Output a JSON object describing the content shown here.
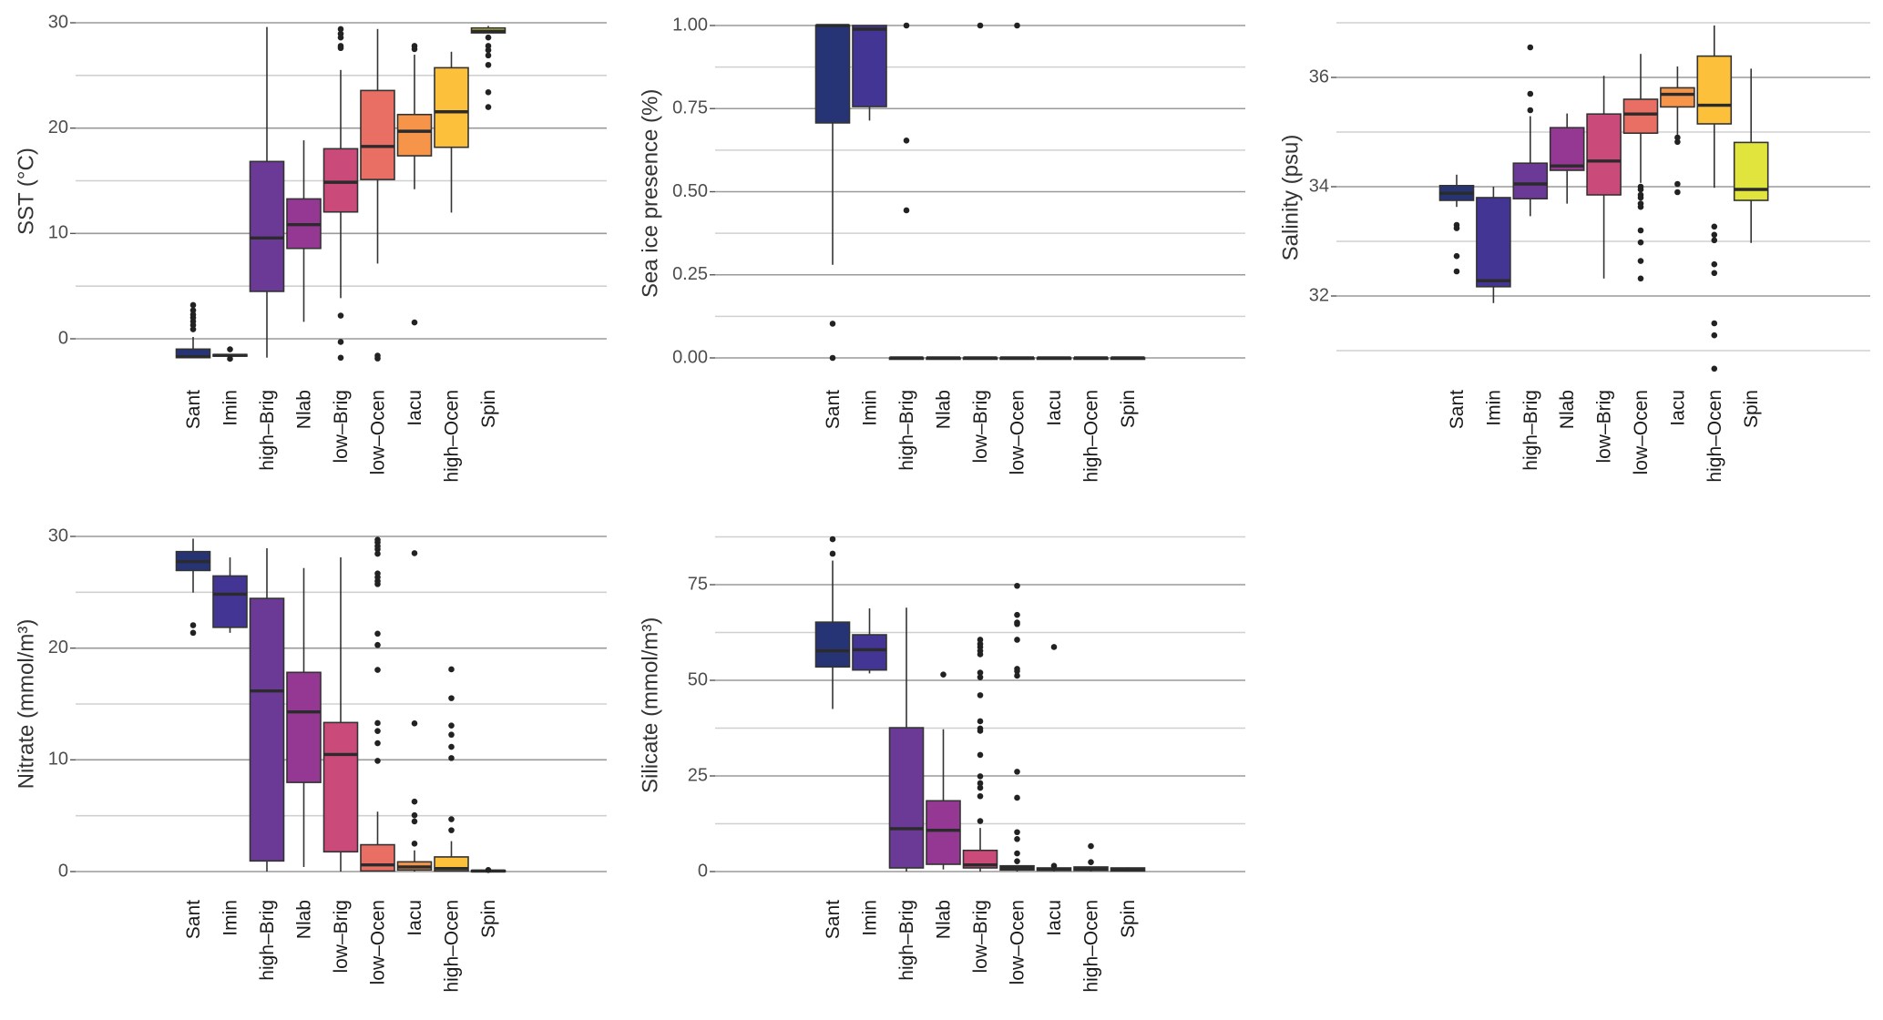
{
  "figure": {
    "categories": [
      "Sant",
      "Imin",
      "high–Brig",
      "Nlab",
      "low–Brig",
      "low–Ocen",
      "Iacu",
      "high–Ocen",
      "Spin"
    ],
    "palette": [
      "#263476",
      "#433594",
      "#6B3A96",
      "#953893",
      "#CA4A7A",
      "#E96F64",
      "#F6954A",
      "#FDC03A",
      "#E1E43C"
    ]
  },
  "chart_data": [
    {
      "id": "sst",
      "type": "box",
      "title": "",
      "xlabel": "",
      "ylabel": "SST (°C)",
      "ylim": [
        -2.3,
        30.3
      ],
      "yticks": [
        0,
        10,
        20,
        30
      ],
      "ytick_labels": [
        "0",
        "10",
        "20",
        "30"
      ],
      "minor_gridlines": [
        5,
        15,
        25
      ],
      "grid": true,
      "categories": [
        "Sant",
        "Imin",
        "high–Brig",
        "Nlab",
        "low–Brig",
        "low–Ocen",
        "Iacu",
        "high–Ocen",
        "Spin"
      ],
      "boxes": [
        {
          "q1": -1.79,
          "median": -1.7,
          "q3": -0.98,
          "whislo": -1.79,
          "whishi": 0.17,
          "fliers": [
            0.9,
            1.3,
            1.65,
            2.0,
            2.3,
            2.7,
            3.2
          ]
        },
        {
          "q1": -1.65,
          "median": -1.56,
          "q3": -1.5,
          "whislo": -1.65,
          "whishi": -1.5,
          "fliers": [
            -1.0,
            -1.9
          ]
        },
        {
          "q1": 4.5,
          "median": 9.57,
          "q3": 16.83,
          "whislo": -1.79,
          "whishi": 29.6,
          "fliers": []
        },
        {
          "q1": 8.58,
          "median": 10.83,
          "q3": 13.28,
          "whislo": 1.61,
          "whishi": 18.84,
          "fliers": []
        },
        {
          "q1": 12.04,
          "median": 14.86,
          "q3": 18.04,
          "whislo": 3.86,
          "whishi": 25.52,
          "fliers": [
            29.4,
            28.96,
            28.6,
            27.8,
            27.6,
            2.2,
            -0.3,
            -1.8
          ]
        },
        {
          "q1": 15.12,
          "median": 18.26,
          "q3": 23.57,
          "whislo": 7.14,
          "whishi": 29.41,
          "fliers": [
            -1.6,
            -1.87
          ]
        },
        {
          "q1": 17.37,
          "median": 19.7,
          "q3": 21.29,
          "whislo": 14.2,
          "whishi": 26.97,
          "fliers": [
            27.8,
            27.5,
            1.55
          ]
        },
        {
          "q1": 18.18,
          "median": 21.55,
          "q3": 25.73,
          "whislo": 11.98,
          "whishi": 27.25,
          "fliers": []
        },
        {
          "q1": 29.04,
          "median": 29.2,
          "q3": 29.5,
          "whislo": 29.04,
          "whishi": 29.7,
          "fliers": [
            28.6,
            27.8,
            27.4,
            26.9,
            26.0,
            23.4,
            22.0
          ]
        }
      ]
    },
    {
      "id": "seaice",
      "type": "box",
      "title": "",
      "xlabel": "",
      "ylabel": "Sea ice presence (%)",
      "ylim": [
        -0.03,
        1.02
      ],
      "yticks": [
        0,
        0.25,
        0.5,
        0.75,
        1.0
      ],
      "ytick_labels": [
        "0.00",
        "0.25",
        "0.50",
        "0.75",
        "1.00"
      ],
      "minor_gridlines": [
        0.125,
        0.375,
        0.625,
        0.875
      ],
      "grid": true,
      "categories": [
        "Sant",
        "Imin",
        "high–Brig",
        "Nlab",
        "low–Brig",
        "low–Ocen",
        "Iacu",
        "high–Ocen",
        "Spin"
      ],
      "boxes": [
        {
          "q1": 0.707,
          "median": 1.0,
          "q3": 1.0,
          "whislo": 0.28,
          "whishi": 1.0,
          "fliers": [
            0.103,
            0.0
          ]
        },
        {
          "q1": 0.756,
          "median": 0.989,
          "q3": 1.0,
          "whislo": 0.714,
          "whishi": 1.0,
          "fliers": []
        },
        {
          "q1": 0,
          "median": 0,
          "q3": 0,
          "whislo": 0,
          "whishi": 0,
          "fliers": [
            1.0,
            0.654,
            0.444
          ]
        },
        {
          "q1": 0,
          "median": 0,
          "q3": 0,
          "whislo": 0,
          "whishi": 0,
          "fliers": []
        },
        {
          "q1": 0,
          "median": 0,
          "q3": 0,
          "whislo": 0,
          "whishi": 0,
          "fliers": [
            1.0
          ]
        },
        {
          "q1": 0,
          "median": 0,
          "q3": 0,
          "whislo": 0,
          "whishi": 0,
          "fliers": [
            1.0
          ]
        },
        {
          "q1": 0,
          "median": 0,
          "q3": 0,
          "whislo": 0,
          "whishi": 0,
          "fliers": []
        },
        {
          "q1": 0,
          "median": 0,
          "q3": 0,
          "whislo": 0,
          "whishi": 0,
          "fliers": []
        },
        {
          "q1": 0,
          "median": 0,
          "q3": 0,
          "whislo": 0,
          "whishi": 0,
          "fliers": []
        }
      ]
    },
    {
      "id": "salinity",
      "type": "box",
      "title": "",
      "xlabel": "",
      "ylabel": "Salinity (psu)",
      "ylim": [
        30.6,
        37.0
      ],
      "yticks": [
        32,
        34,
        36
      ],
      "ytick_labels": [
        "32",
        "34",
        "36"
      ],
      "minor_gridlines": [
        31,
        33,
        35,
        37
      ],
      "grid": true,
      "categories": [
        "Sant",
        "Imin",
        "high–Brig",
        "Nlab",
        "low–Brig",
        "low–Ocen",
        "Iacu",
        "high–Ocen",
        "Spin"
      ],
      "boxes": [
        {
          "q1": 33.75,
          "median": 33.88,
          "q3": 34.02,
          "whislo": 33.63,
          "whishi": 34.22,
          "fliers": [
            33.3,
            33.24,
            32.73,
            32.45
          ]
        },
        {
          "q1": 32.17,
          "median": 32.28,
          "q3": 33.8,
          "whislo": 31.87,
          "whishi": 34.0,
          "fliers": []
        },
        {
          "q1": 33.78,
          "median": 34.05,
          "q3": 34.43,
          "whislo": 33.46,
          "whishi": 35.29,
          "fliers": [
            35.4,
            35.7,
            36.55
          ]
        },
        {
          "q1": 34.3,
          "median": 34.38,
          "q3": 35.08,
          "whislo": 33.69,
          "whishi": 35.34,
          "fliers": []
        },
        {
          "q1": 33.85,
          "median": 34.47,
          "q3": 35.33,
          "whislo": 32.32,
          "whishi": 36.03,
          "fliers": []
        },
        {
          "q1": 34.98,
          "median": 35.33,
          "q3": 35.6,
          "whislo": 34.07,
          "whishi": 36.43,
          "fliers": [
            34.0,
            33.95,
            33.85,
            33.8,
            33.69,
            33.63,
            33.2,
            32.98,
            32.64,
            32.32
          ]
        },
        {
          "q1": 35.46,
          "median": 35.69,
          "q3": 35.81,
          "whislo": 34.95,
          "whishi": 36.2,
          "fliers": [
            34.9,
            34.82,
            34.05,
            33.9
          ]
        },
        {
          "q1": 35.15,
          "median": 35.49,
          "q3": 36.39,
          "whislo": 33.98,
          "whishi": 36.95,
          "fliers": [
            33.27,
            33.12,
            33.02,
            32.58,
            32.42,
            31.5,
            31.28,
            30.67
          ]
        },
        {
          "q1": 33.75,
          "median": 33.95,
          "q3": 34.81,
          "whislo": 32.97,
          "whishi": 36.16,
          "fliers": []
        }
      ]
    },
    {
      "id": "nitrate",
      "type": "box",
      "title": "",
      "xlabel": "",
      "ylabel": "Nitrate (mmol/m³)",
      "ylim": [
        -0.5,
        30.5
      ],
      "yticks": [
        0,
        10,
        20,
        30
      ],
      "ytick_labels": [
        "0",
        "10",
        "20",
        "30"
      ],
      "minor_gridlines": [
        5,
        15,
        25
      ],
      "grid": true,
      "categories": [
        "Sant",
        "Imin",
        "high–Brig",
        "Nlab",
        "low–Brig",
        "low–Ocen",
        "Iacu",
        "high–Ocen",
        "Spin"
      ],
      "boxes": [
        {
          "q1": 26.95,
          "median": 27.74,
          "q3": 28.64,
          "whislo": 24.97,
          "whishi": 29.8,
          "fliers": [
            22.05,
            21.37
          ]
        },
        {
          "q1": 21.86,
          "median": 24.83,
          "q3": 26.46,
          "whislo": 21.37,
          "whishi": 28.12,
          "fliers": []
        },
        {
          "q1": 0.95,
          "median": 16.17,
          "q3": 24.45,
          "whislo": 0.0,
          "whishi": 28.94,
          "fliers": []
        },
        {
          "q1": 7.98,
          "median": 14.29,
          "q3": 17.83,
          "whislo": 0.41,
          "whishi": 27.17,
          "fliers": []
        },
        {
          "q1": 1.77,
          "median": 10.48,
          "q3": 13.34,
          "whislo": 0.0,
          "whishi": 28.12,
          "fliers": []
        },
        {
          "q1": 0.05,
          "median": 0.6,
          "q3": 2.4,
          "whislo": 0.0,
          "whishi": 5.36,
          "fliers": [
            29.7,
            29.46,
            29.13,
            28.86,
            28.45,
            26.68,
            26.35,
            26.0,
            25.73,
            21.29,
            20.28,
            18.05,
            13.29,
            12.58,
            11.49,
            9.91
          ]
        },
        {
          "q1": 0.14,
          "median": 0.41,
          "q3": 0.87,
          "whislo": 0.0,
          "whishi": 1.9,
          "fliers": [
            28.5,
            13.26,
            6.26,
            5.04,
            4.49,
            2.5
          ]
        },
        {
          "q1": 0.05,
          "median": 0.27,
          "q3": 1.31,
          "whislo": 0.0,
          "whishi": 2.72,
          "fliers": [
            18.1,
            15.52,
            13.07,
            12.25,
            11.16,
            10.16,
            4.68,
            3.7
          ]
        },
        {
          "q1": 0.0,
          "median": 0.05,
          "q3": 0.1,
          "whislo": 0.0,
          "whishi": 0.1,
          "fliers": [
            0.14
          ]
        }
      ]
    },
    {
      "id": "silicate",
      "type": "box",
      "title": "",
      "xlabel": "",
      "ylabel": "Silicate (mmol/m³)",
      "ylim": [
        -1.5,
        88.5
      ],
      "yticks": [
        0,
        25,
        50,
        75
      ],
      "ytick_labels": [
        "0",
        "25",
        "50",
        "75"
      ],
      "minor_gridlines": [
        12.5,
        37.5,
        62.5,
        87.5
      ],
      "grid": true,
      "categories": [
        "Sant",
        "Imin",
        "high–Brig",
        "Nlab",
        "low–Brig",
        "low–Ocen",
        "Iacu",
        "high–Ocen",
        "Spin"
      ],
      "boxes": [
        {
          "q1": 53.5,
          "median": 57.7,
          "q3": 65.2,
          "whislo": 42.5,
          "whishi": 81.3,
          "fliers": [
            86.9,
            83.1
          ]
        },
        {
          "q1": 52.7,
          "median": 58.0,
          "q3": 61.9,
          "whislo": 51.8,
          "whishi": 68.8,
          "fliers": []
        },
        {
          "q1": 0.95,
          "median": 11.2,
          "q3": 37.6,
          "whislo": 0.0,
          "whishi": 69.0,
          "fliers": []
        },
        {
          "q1": 1.9,
          "median": 10.8,
          "q3": 18.5,
          "whislo": 0.55,
          "whishi": 37.2,
          "fliers": [
            51.5
          ]
        },
        {
          "q1": 0.95,
          "median": 1.74,
          "q3": 5.54,
          "whislo": 0.0,
          "whishi": 11.4,
          "fliers": [
            60.6,
            59.5,
            58.7,
            57.7,
            56.8,
            52.0,
            50.8,
            46.1,
            39.3,
            37.4,
            36.8,
            30.5,
            24.9,
            23.1,
            21.9,
            19.7,
            13.2
          ]
        },
        {
          "q1": 0.4,
          "median": 0.95,
          "q3": 1.5,
          "whislo": 0.0,
          "whishi": 1.5,
          "fliers": [
            74.7,
            67.1,
            65.1,
            64.7,
            60.6,
            53.0,
            52.4,
            51.2,
            26.1,
            19.3,
            10.3,
            8.5,
            4.75,
            2.7
          ]
        },
        {
          "q1": 0.3,
          "median": 0.6,
          "q3": 0.95,
          "whislo": 0.0,
          "whishi": 0.95,
          "fliers": [
            58.7,
            1.5
          ]
        },
        {
          "q1": 0.3,
          "median": 0.7,
          "q3": 1.2,
          "whislo": 0.0,
          "whishi": 1.2,
          "fliers": [
            6.65,
            2.45
          ]
        },
        {
          "q1": 0.15,
          "median": 0.5,
          "q3": 0.95,
          "whislo": 0.0,
          "whishi": 1.1,
          "fliers": []
        }
      ]
    }
  ]
}
